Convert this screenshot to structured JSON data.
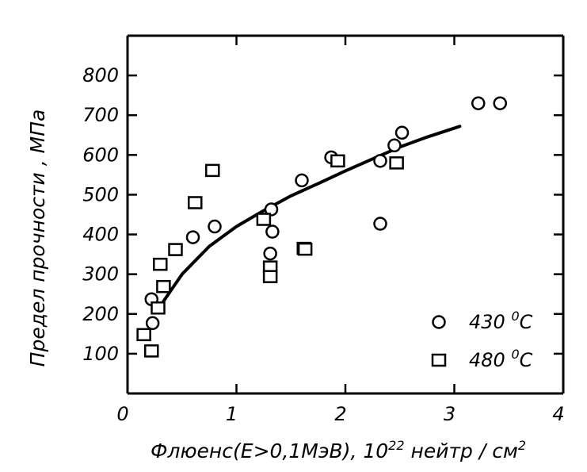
{
  "chart_data": {
    "type": "scatter",
    "xlabel_parts": {
      "main": "Флюенс(E>0,1МэВ), 10",
      "exp": "22",
      "tail": " нейтр / см",
      "exp2": "2"
    },
    "ylabel": "Предел прочности , МПа",
    "xlim": [
      0,
      4
    ],
    "ylim": [
      0,
      900
    ],
    "x_ticks": [
      0,
      1,
      2,
      3,
      4
    ],
    "x_tick_labels": [
      "0",
      "1",
      "2",
      "3",
      "4"
    ],
    "y_ticks": [
      100,
      200,
      300,
      400,
      500,
      600,
      700,
      800
    ],
    "y_tick_labels": [
      "100",
      "200",
      "300",
      "400",
      "500",
      "600",
      "700",
      "800"
    ],
    "grid": false,
    "legend_position": "bottom-right",
    "series": [
      {
        "name": "430 °C",
        "name_parts": {
          "value": "430 ",
          "sup": "0",
          "unit": "C"
        },
        "marker": "circle",
        "points": [
          [
            0.22,
            237
          ],
          [
            0.23,
            177
          ],
          [
            0.6,
            393
          ],
          [
            0.8,
            420
          ],
          [
            1.32,
            463
          ],
          [
            1.31,
            352
          ],
          [
            1.33,
            407
          ],
          [
            1.6,
            536
          ],
          [
            1.87,
            594
          ],
          [
            2.32,
            585
          ],
          [
            2.32,
            427
          ],
          [
            2.45,
            624
          ],
          [
            2.52,
            656
          ],
          [
            3.22,
            730
          ],
          [
            3.42,
            730
          ]
        ]
      },
      {
        "name": "480 °C",
        "name_parts": {
          "value": "480 ",
          "sup": "0",
          "unit": "C"
        },
        "marker": "square",
        "points": [
          [
            0.15,
            148
          ],
          [
            0.22,
            107
          ],
          [
            0.28,
            215
          ],
          [
            0.3,
            325
          ],
          [
            0.33,
            269
          ],
          [
            0.44,
            362
          ],
          [
            0.62,
            480
          ],
          [
            0.78,
            561
          ],
          [
            1.25,
            438
          ],
          [
            1.31,
            318
          ],
          [
            1.31,
            294
          ],
          [
            1.62,
            365
          ],
          [
            1.63,
            363
          ],
          [
            1.93,
            585
          ],
          [
            2.47,
            580
          ]
        ]
      }
    ],
    "fit_curve": {
      "points": [
        [
          0.28,
          212
        ],
        [
          0.5,
          300
        ],
        [
          0.75,
          370
        ],
        [
          1.0,
          420
        ],
        [
          1.25,
          460
        ],
        [
          1.5,
          497
        ],
        [
          1.75,
          528
        ],
        [
          2.0,
          560
        ],
        [
          2.25,
          590
        ],
        [
          2.5,
          620
        ],
        [
          2.75,
          645
        ],
        [
          3.05,
          672
        ]
      ]
    }
  }
}
